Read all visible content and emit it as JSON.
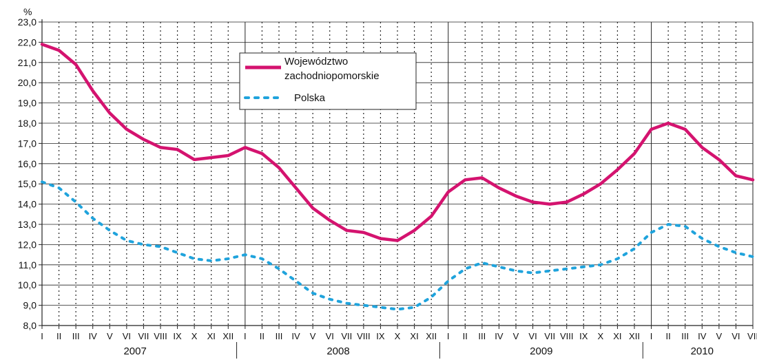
{
  "chart_data": {
    "type": "line",
    "unit_label": "%",
    "ylim": [
      8.0,
      23.0
    ],
    "yticks": [
      "8,0",
      "9,0",
      "10,0",
      "11,0",
      "12,0",
      "13,0",
      "14,0",
      "15,0",
      "16,0",
      "17,0",
      "18,0",
      "19,0",
      "20,0",
      "21,0",
      "22,0",
      "23,0"
    ],
    "months": [
      "I",
      "II",
      "III",
      "IV",
      "V",
      "VI",
      "VII",
      "VIII",
      "IX",
      "X",
      "XI",
      "XII",
      "I",
      "II",
      "III",
      "IV",
      "V",
      "VI",
      "VII",
      "VIII",
      "IX",
      "X",
      "XI",
      "XII",
      "I",
      "II",
      "III",
      "IV",
      "V",
      "VI",
      "VII",
      "VIII",
      "IX",
      "X",
      "XI",
      "XII",
      "I",
      "II",
      "III",
      "IV",
      "V",
      "VI",
      "VII"
    ],
    "years": [
      {
        "label": "2007",
        "start": 0,
        "end": 11
      },
      {
        "label": "2008",
        "start": 12,
        "end": 23
      },
      {
        "label": "2009",
        "start": 24,
        "end": 35
      },
      {
        "label": "2010",
        "start": 36,
        "end": 42
      }
    ],
    "grid": true,
    "legend_position": "top-center",
    "series": [
      {
        "name": "Województwo zachodniopomorskie",
        "name_lines": [
          "Województwo",
          "zachodniopomorskie"
        ],
        "style": "solid",
        "color": "#d4136f",
        "values": [
          21.9,
          21.6,
          20.9,
          19.6,
          18.5,
          17.7,
          17.2,
          16.8,
          16.7,
          16.2,
          16.3,
          16.4,
          16.8,
          16.5,
          15.8,
          14.8,
          13.8,
          13.2,
          12.7,
          12.6,
          12.3,
          12.2,
          12.7,
          13.4,
          14.6,
          15.2,
          15.3,
          14.8,
          14.4,
          14.1,
          14.0,
          14.1,
          14.5,
          15.0,
          15.7,
          16.5,
          17.7,
          18.0,
          17.7,
          16.8,
          16.2,
          15.4,
          15.2
        ]
      },
      {
        "name": "Polska",
        "name_lines": [
          "Polska"
        ],
        "style": "dotted",
        "color": "#1fa3dc",
        "values": [
          15.1,
          14.8,
          14.1,
          13.3,
          12.7,
          12.2,
          12.0,
          11.9,
          11.6,
          11.3,
          11.2,
          11.3,
          11.5,
          11.3,
          10.8,
          10.2,
          9.6,
          9.3,
          9.1,
          9.0,
          8.9,
          8.8,
          8.9,
          9.4,
          10.2,
          10.8,
          11.1,
          10.9,
          10.7,
          10.6,
          10.7,
          10.8,
          10.9,
          11.0,
          11.3,
          11.8,
          12.6,
          13.0,
          12.9,
          12.3,
          11.9,
          11.6,
          11.4
        ]
      }
    ]
  }
}
